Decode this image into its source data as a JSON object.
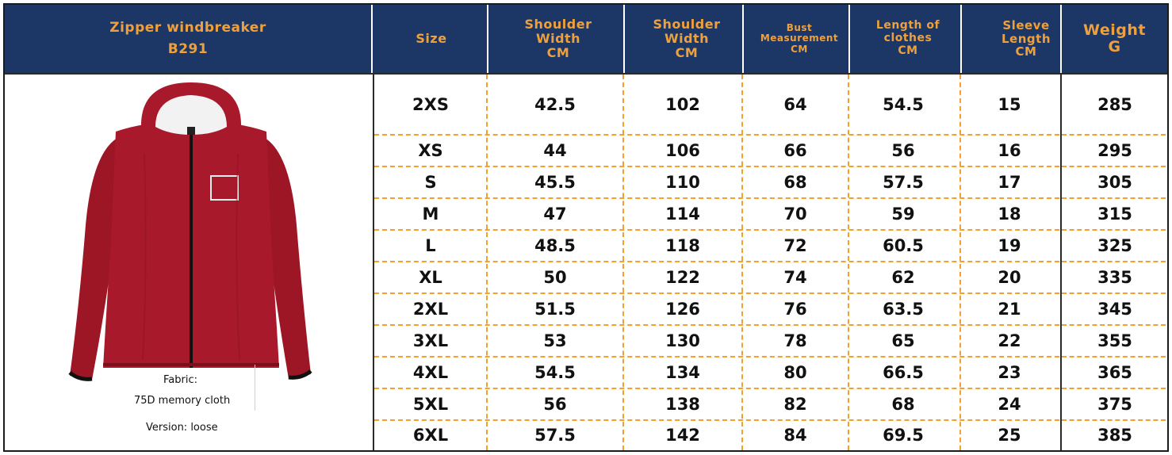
{
  "product": {
    "name": "Zipper windbreaker",
    "code": "B291"
  },
  "headers": {
    "size": "Size",
    "shoulder_width_1": [
      "Shoulder",
      "Width",
      "CM"
    ],
    "shoulder_width_2": [
      "Shoulder",
      "Width",
      "CM"
    ],
    "bust": [
      "Bust",
      "Measurement",
      "CM"
    ],
    "length": [
      "Length of",
      "clothes",
      "CM"
    ],
    "sleeve": [
      "Sleeve",
      "Length",
      "CM"
    ],
    "weight": [
      "Weight",
      "G"
    ]
  },
  "info": {
    "fabric_label": "Fabric:",
    "fabric_value": "75D memory cloth",
    "version": "Version: loose"
  },
  "colors": {
    "header_bg": "#1c3766",
    "header_text": "#f0a03a",
    "grid_dash": "#f3a12b",
    "jacket": "#a8192b"
  },
  "icons": {
    "product_image": "red-hooded-zipper-jacket-icon"
  },
  "rows": [
    [
      "2XS",
      "42.5",
      "102",
      "64",
      "54.5",
      "15",
      "285"
    ],
    [
      "XS",
      "44",
      "106",
      "66",
      "56",
      "16",
      "295"
    ],
    [
      "S",
      "45.5",
      "110",
      "68",
      "57.5",
      "17",
      "305"
    ],
    [
      "M",
      "47",
      "114",
      "70",
      "59",
      "18",
      "315"
    ],
    [
      "L",
      "48.5",
      "118",
      "72",
      "60.5",
      "19",
      "325"
    ],
    [
      "XL",
      "50",
      "122",
      "74",
      "62",
      "20",
      "335"
    ],
    [
      "2XL",
      "51.5",
      "126",
      "76",
      "63.5",
      "21",
      "345"
    ],
    [
      "3XL",
      "53",
      "130",
      "78",
      "65",
      "22",
      "355"
    ],
    [
      "4XL",
      "54.5",
      "134",
      "80",
      "66.5",
      "23",
      "365"
    ],
    [
      "5XL",
      "56",
      "138",
      "82",
      "68",
      "24",
      "375"
    ],
    [
      "6XL",
      "57.5",
      "142",
      "84",
      "69.5",
      "25",
      "385"
    ]
  ]
}
